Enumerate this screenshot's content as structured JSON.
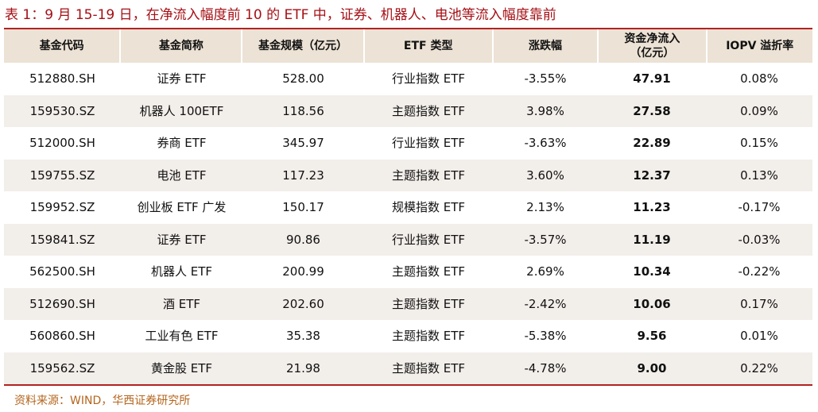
{
  "title": "表 1：9 月 15-19 日，在净流入幅度前 10 的 ETF 中，证券、机器人、电池等流入幅度靠前",
  "table": {
    "headers": [
      "基金代码",
      "基金简称",
      "基金规模（亿元）",
      "ETF 类型",
      "涨跌幅",
      "资金净流入\n（亿元）",
      "IOPV 溢折率"
    ],
    "rows": [
      [
        "512880.SH",
        "证券 ETF",
        "528.00",
        "行业指数 ETF",
        "-3.55%",
        "47.91",
        "0.08%"
      ],
      [
        "159530.SZ",
        "机器人 100ETF",
        "118.56",
        "主题指数 ETF",
        "3.98%",
        "27.58",
        "0.09%"
      ],
      [
        "512000.SH",
        "券商 ETF",
        "345.97",
        "行业指数 ETF",
        "-3.63%",
        "22.89",
        "0.15%"
      ],
      [
        "159755.SZ",
        "电池 ETF",
        "117.23",
        "主题指数 ETF",
        "3.60%",
        "12.37",
        "0.13%"
      ],
      [
        "159952.SZ",
        "创业板 ETF 广发",
        "150.17",
        "规模指数 ETF",
        "2.13%",
        "11.23",
        "-0.17%"
      ],
      [
        "159841.SZ",
        "证券 ETF",
        "90.86",
        "行业指数 ETF",
        "-3.57%",
        "11.19",
        "-0.03%"
      ],
      [
        "562500.SH",
        "机器人 ETF",
        "200.99",
        "主题指数 ETF",
        "2.69%",
        "10.34",
        "-0.22%"
      ],
      [
        "512690.SH",
        "酒 ETF",
        "202.60",
        "主题指数 ETF",
        "-2.42%",
        "10.06",
        "0.17%"
      ],
      [
        "560860.SH",
        "工业有色 ETF",
        "35.38",
        "主题指数 ETF",
        "-5.38%",
        "9.56",
        "0.01%"
      ],
      [
        "159562.SZ",
        "黄金股 ETF",
        "21.98",
        "主题指数 ETF",
        "-4.78%",
        "9.00",
        "0.22%"
      ]
    ]
  },
  "source": "资料来源：WIND，华西证券研究所"
}
